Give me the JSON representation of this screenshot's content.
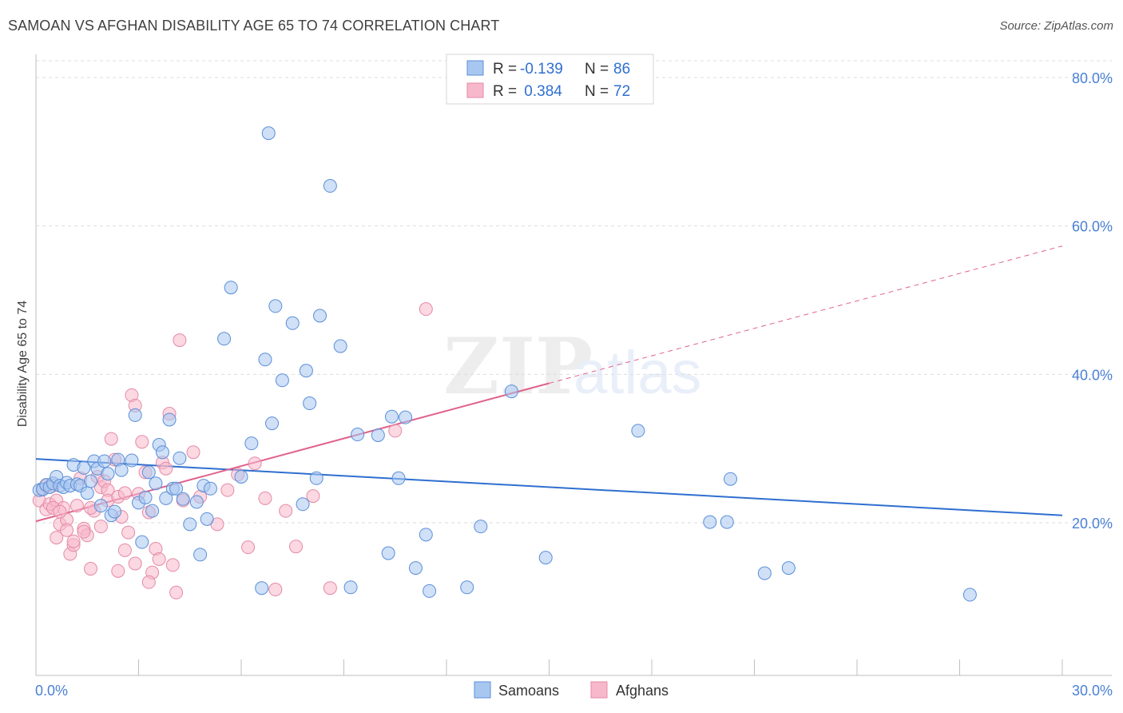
{
  "title": "SAMOAN VS AFGHAN DISABILITY AGE 65 TO 74 CORRELATION CHART",
  "source": "Source: ZipAtlas.com",
  "watermark": "ZIPatlas",
  "legend_box": {
    "rows": [
      {
        "r_label": "R =",
        "r_value": "-0.139",
        "n_label": "N =",
        "n_value": "86"
      },
      {
        "r_label": "R =",
        "r_value": " 0.384",
        "n_label": "N =",
        "n_value": "72"
      }
    ]
  },
  "colors": {
    "samoans_fill": "#a8c7f0",
    "samoans_stroke": "#5b8fd8",
    "samoans_line": "#2f6fd0",
    "afghans_fill": "#f7b8cb",
    "afghans_stroke": "#e58aa7",
    "afghans_line": "#e0638c",
    "tick_text": "#4a80d6",
    "grid": "#dddddd"
  },
  "chart_data": {
    "type": "scatter",
    "title": "SAMOAN VS AFGHAN DISABILITY AGE 65 TO 74 CORRELATION CHART",
    "xlabel": "",
    "ylabel": "Disability Age 65 to 74",
    "xlim": [
      0,
      30
    ],
    "ylim": [
      0,
      82
    ],
    "x_ticks": [
      "0.0%",
      "30.0%"
    ],
    "y_ticks": [
      {
        "value": 20,
        "label": "20.0%"
      },
      {
        "value": 40,
        "label": "40.0%"
      },
      {
        "value": 60,
        "label": "60.0%"
      },
      {
        "value": 80,
        "label": "80.0%"
      }
    ],
    "grid": true,
    "legend_position": "bottom-center",
    "series": [
      {
        "name": "Samoans",
        "r": -0.139,
        "n": 86,
        "trend": {
          "x0": 0,
          "y0": 28.6,
          "x1": 30,
          "y1": 21.0
        },
        "points": [
          [
            0.1,
            24.4
          ],
          [
            0.2,
            24.5
          ],
          [
            0.3,
            25.1
          ],
          [
            0.4,
            24.8
          ],
          [
            0.5,
            25.3
          ],
          [
            0.6,
            26.2
          ],
          [
            0.7,
            25.0
          ],
          [
            0.8,
            24.8
          ],
          [
            0.9,
            25.4
          ],
          [
            1.0,
            25.0
          ],
          [
            1.1,
            27.8
          ],
          [
            1.2,
            25.2
          ],
          [
            1.3,
            25.0
          ],
          [
            1.4,
            27.4
          ],
          [
            1.5,
            24.0
          ],
          [
            1.6,
            25.6
          ],
          [
            1.7,
            28.3
          ],
          [
            1.8,
            27.3
          ],
          [
            1.9,
            22.3
          ],
          [
            2.0,
            28.3
          ],
          [
            2.1,
            26.6
          ],
          [
            2.2,
            21.0
          ],
          [
            2.3,
            21.5
          ],
          [
            2.4,
            28.5
          ],
          [
            2.5,
            27.1
          ],
          [
            2.8,
            28.4
          ],
          [
            2.9,
            34.5
          ],
          [
            3.0,
            22.7
          ],
          [
            3.1,
            17.4
          ],
          [
            3.2,
            23.4
          ],
          [
            3.3,
            26.8
          ],
          [
            3.4,
            21.6
          ],
          [
            3.5,
            25.3
          ],
          [
            3.6,
            30.5
          ],
          [
            3.7,
            29.5
          ],
          [
            3.8,
            23.3
          ],
          [
            3.9,
            33.9
          ],
          [
            4.0,
            24.6
          ],
          [
            4.1,
            24.6
          ],
          [
            4.2,
            28.7
          ],
          [
            4.3,
            23.2
          ],
          [
            4.5,
            19.8
          ],
          [
            4.7,
            22.8
          ],
          [
            4.8,
            15.7
          ],
          [
            4.9,
            25.0
          ],
          [
            5.0,
            20.5
          ],
          [
            5.1,
            24.6
          ],
          [
            5.5,
            44.8
          ],
          [
            5.7,
            51.7
          ],
          [
            6.0,
            26.2
          ],
          [
            6.3,
            30.7
          ],
          [
            6.6,
            11.2
          ],
          [
            6.7,
            42.0
          ],
          [
            6.8,
            72.5
          ],
          [
            6.9,
            33.4
          ],
          [
            7.0,
            49.2
          ],
          [
            7.2,
            39.2
          ],
          [
            7.5,
            46.9
          ],
          [
            7.8,
            22.5
          ],
          [
            7.9,
            40.5
          ],
          [
            8.0,
            36.1
          ],
          [
            8.2,
            26.0
          ],
          [
            8.3,
            47.9
          ],
          [
            8.6,
            65.4
          ],
          [
            8.9,
            43.8
          ],
          [
            9.2,
            11.3
          ],
          [
            9.4,
            31.9
          ],
          [
            10.0,
            31.8
          ],
          [
            10.3,
            15.9
          ],
          [
            10.4,
            34.3
          ],
          [
            10.6,
            26.0
          ],
          [
            10.8,
            34.2
          ],
          [
            11.1,
            13.9
          ],
          [
            11.4,
            18.4
          ],
          [
            11.5,
            10.8
          ],
          [
            12.6,
            11.3
          ],
          [
            13.0,
            19.5
          ],
          [
            13.9,
            37.7
          ],
          [
            14.9,
            15.3
          ],
          [
            17.6,
            32.4
          ],
          [
            19.7,
            20.1
          ],
          [
            20.2,
            20.1
          ],
          [
            20.3,
            25.9
          ],
          [
            21.3,
            13.2
          ],
          [
            22.0,
            13.9
          ],
          [
            27.3,
            10.3
          ]
        ]
      },
      {
        "name": "Afghans",
        "r": 0.384,
        "n": 72,
        "trend": {
          "x0": 0,
          "y0": 20.2,
          "x1": 15,
          "y1": 38.8,
          "x1_dashed": 30,
          "y1_dashed": 57.3
        },
        "points": [
          [
            0.1,
            23.0
          ],
          [
            0.2,
            24.6
          ],
          [
            0.3,
            21.8
          ],
          [
            0.4,
            22.5
          ],
          [
            0.5,
            25.0
          ],
          [
            0.6,
            23.0
          ],
          [
            0.6,
            18.0
          ],
          [
            0.7,
            19.8
          ],
          [
            0.8,
            22.0
          ],
          [
            0.9,
            20.4
          ],
          [
            1.0,
            15.8
          ],
          [
            1.1,
            17.0
          ],
          [
            1.2,
            22.3
          ],
          [
            1.3,
            26.0
          ],
          [
            1.4,
            19.2
          ],
          [
            1.5,
            18.3
          ],
          [
            1.6,
            13.8
          ],
          [
            1.7,
            21.6
          ],
          [
            1.8,
            26.2
          ],
          [
            1.9,
            24.8
          ],
          [
            2.0,
            25.6
          ],
          [
            2.1,
            24.4
          ],
          [
            2.2,
            31.3
          ],
          [
            2.3,
            28.5
          ],
          [
            2.4,
            13.5
          ],
          [
            2.5,
            20.8
          ],
          [
            2.6,
            16.3
          ],
          [
            2.7,
            18.7
          ],
          [
            2.8,
            37.2
          ],
          [
            2.9,
            35.8
          ],
          [
            3.0,
            23.9
          ],
          [
            3.1,
            30.9
          ],
          [
            3.2,
            26.8
          ],
          [
            3.3,
            21.4
          ],
          [
            3.4,
            13.3
          ],
          [
            3.5,
            16.5
          ],
          [
            3.6,
            15.1
          ],
          [
            3.7,
            28.1
          ],
          [
            3.8,
            27.3
          ],
          [
            3.9,
            34.7
          ],
          [
            4.0,
            14.3
          ],
          [
            4.1,
            10.6
          ],
          [
            4.2,
            44.6
          ],
          [
            4.3,
            23.0
          ],
          [
            4.6,
            29.5
          ],
          [
            4.8,
            23.5
          ],
          [
            5.3,
            19.8
          ],
          [
            5.6,
            24.4
          ],
          [
            5.9,
            26.5
          ],
          [
            6.2,
            16.7
          ],
          [
            6.4,
            28.0
          ],
          [
            6.7,
            23.3
          ],
          [
            7.0,
            11.0
          ],
          [
            7.3,
            21.6
          ],
          [
            7.6,
            16.8
          ],
          [
            8.1,
            23.6
          ],
          [
            8.6,
            11.2
          ],
          [
            10.5,
            32.4
          ],
          [
            11.4,
            48.8
          ],
          [
            0.3,
            25.0
          ],
          [
            0.5,
            22.0
          ],
          [
            0.7,
            21.5
          ],
          [
            0.9,
            19.0
          ],
          [
            1.1,
            17.5
          ],
          [
            1.4,
            18.8
          ],
          [
            1.6,
            22.0
          ],
          [
            1.9,
            19.5
          ],
          [
            2.1,
            23.0
          ],
          [
            2.4,
            23.5
          ],
          [
            2.6,
            24.0
          ],
          [
            2.9,
            14.5
          ],
          [
            3.3,
            12.0
          ]
        ]
      }
    ]
  },
  "bottom_legend": [
    "Samoans",
    "Afghans"
  ]
}
